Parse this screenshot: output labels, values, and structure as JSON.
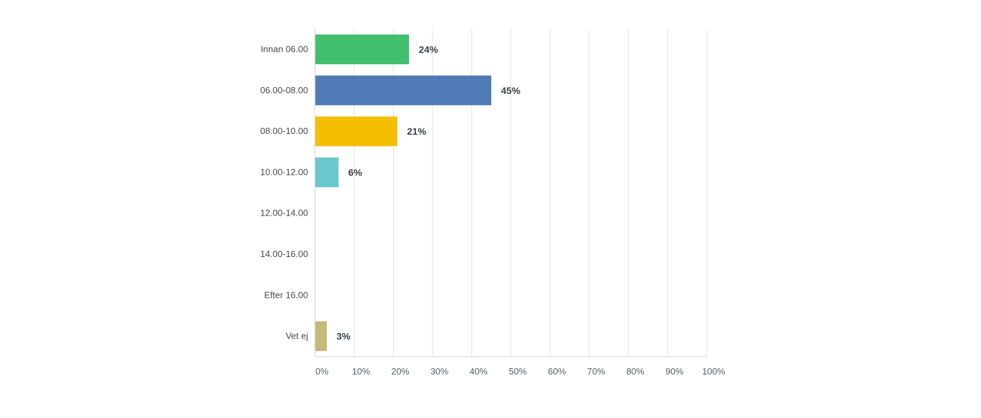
{
  "chart_data": {
    "type": "bar",
    "orientation": "horizontal",
    "categories": [
      "Innan 06.00",
      "06.00-08.00",
      "08.00-10.00",
      "10.00-12.00",
      "12.00-14.00",
      "14.00-16.00",
      "Efter 16.00",
      "Vet ej"
    ],
    "values": [
      24,
      45,
      21,
      6,
      0,
      0,
      0,
      3
    ],
    "value_labels": [
      "24%",
      "45%",
      "21%",
      "6%",
      "",
      "",
      "",
      "3%"
    ],
    "colors": [
      "#42bf6c",
      "#4e7ab5",
      "#f6be00",
      "#68c8cb",
      "#42bf6c",
      "#4e7ab5",
      "#f6be00",
      "#c8b878"
    ],
    "xlim": [
      0,
      100
    ],
    "x_ticks": [
      "0%",
      "10%",
      "20%",
      "30%",
      "40%",
      "50%",
      "60%",
      "70%",
      "80%",
      "90%",
      "100%"
    ],
    "grid": true,
    "title": "",
    "xlabel": "",
    "ylabel": ""
  },
  "style": {
    "grid_color": "#e4e4e4",
    "axis_color": "#cfcfcf"
  }
}
